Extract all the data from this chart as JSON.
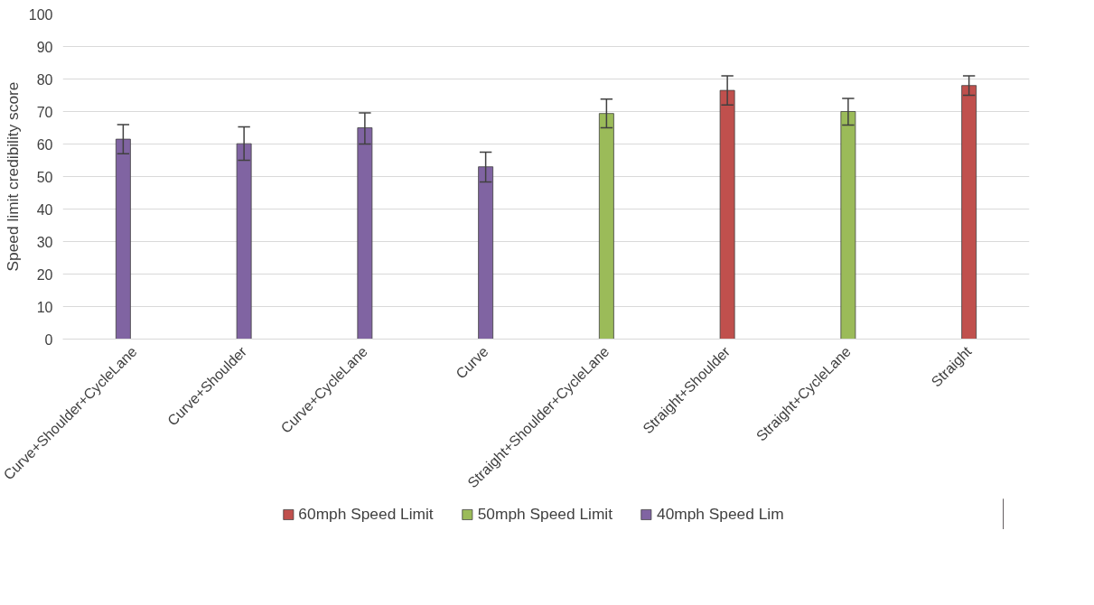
{
  "chart_data": {
    "type": "bar",
    "ylabel": "Speed limit credibility score",
    "categories": [
      "Curve+Shoulder+CycleLane",
      "Curve+Shoulder",
      "Curve+CycleLane",
      "Curve",
      "Straight+Shoulder+CycleLane",
      "Straight+Shoulder",
      "Straight+CycleLane",
      "Straight"
    ],
    "series": [
      {
        "name": "60mph Speed Limit",
        "color": "#c0504d",
        "values": [
          null,
          null,
          null,
          null,
          null,
          76.5,
          null,
          78
        ],
        "errors": [
          null,
          null,
          null,
          null,
          null,
          [
            72,
            81
          ],
          null,
          [
            75,
            81
          ]
        ]
      },
      {
        "name": "50mph Speed Limit",
        "color": "#9bbb59",
        "values": [
          null,
          null,
          null,
          null,
          69.4,
          null,
          70,
          null
        ],
        "errors": [
          null,
          null,
          null,
          null,
          [
            65,
            73.8
          ],
          null,
          [
            65.8,
            74
          ],
          null
        ]
      },
      {
        "name": "40mph Speed Lim",
        "color": "#8064a2",
        "values": [
          61.5,
          60.1,
          65,
          53,
          null,
          null,
          null,
          null
        ],
        "errors": [
          [
            57,
            66
          ],
          [
            55,
            65.3
          ],
          [
            60,
            69.6
          ],
          [
            48.3,
            57.5
          ],
          null,
          null,
          null,
          null
        ]
      }
    ],
    "ylim": [
      0,
      100
    ],
    "yticks": [
      0,
      10,
      20,
      30,
      40,
      50,
      60,
      70,
      80,
      90,
      100
    ],
    "grid": "y",
    "legend": "bottom"
  }
}
